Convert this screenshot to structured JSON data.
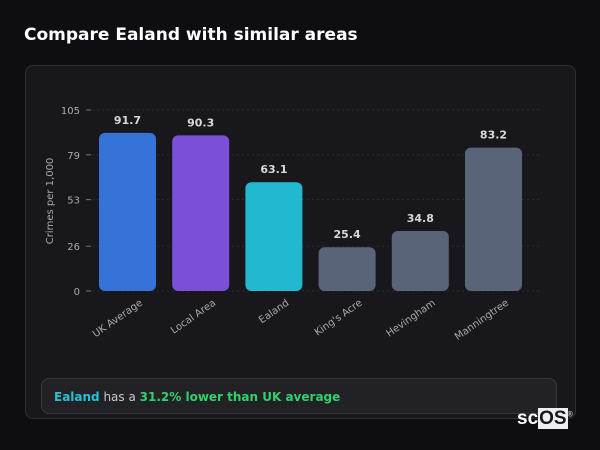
{
  "page_title": "Compare Ealand with similar areas",
  "chart_data": {
    "type": "bar",
    "title": "",
    "xlabel": "",
    "ylabel": "Crimes per 1,000",
    "ylim": [
      0,
      105
    ],
    "yticks": [
      0,
      26,
      53,
      79,
      105
    ],
    "grid": true,
    "categories": [
      "UK Average",
      "Local Area",
      "Ealand",
      "King's Acre",
      "Hevingham",
      "Manningtree"
    ],
    "values": [
      91.7,
      90.3,
      63.1,
      25.4,
      34.8,
      83.2
    ],
    "data_labels": [
      "91.7",
      "90.3",
      "63.1",
      "25.4",
      "34.8",
      "83.2"
    ],
    "colors": [
      "#3573d9",
      "#7b4fd6",
      "#21b8d0",
      "#5a6478",
      "#5a6478",
      "#5a6478"
    ]
  },
  "footer": {
    "place": "Ealand",
    "middle": " has a ",
    "stat": "31.2% lower than UK average"
  },
  "logo": {
    "text_a": "sc",
    "text_b": "OS",
    "mark": "®"
  }
}
